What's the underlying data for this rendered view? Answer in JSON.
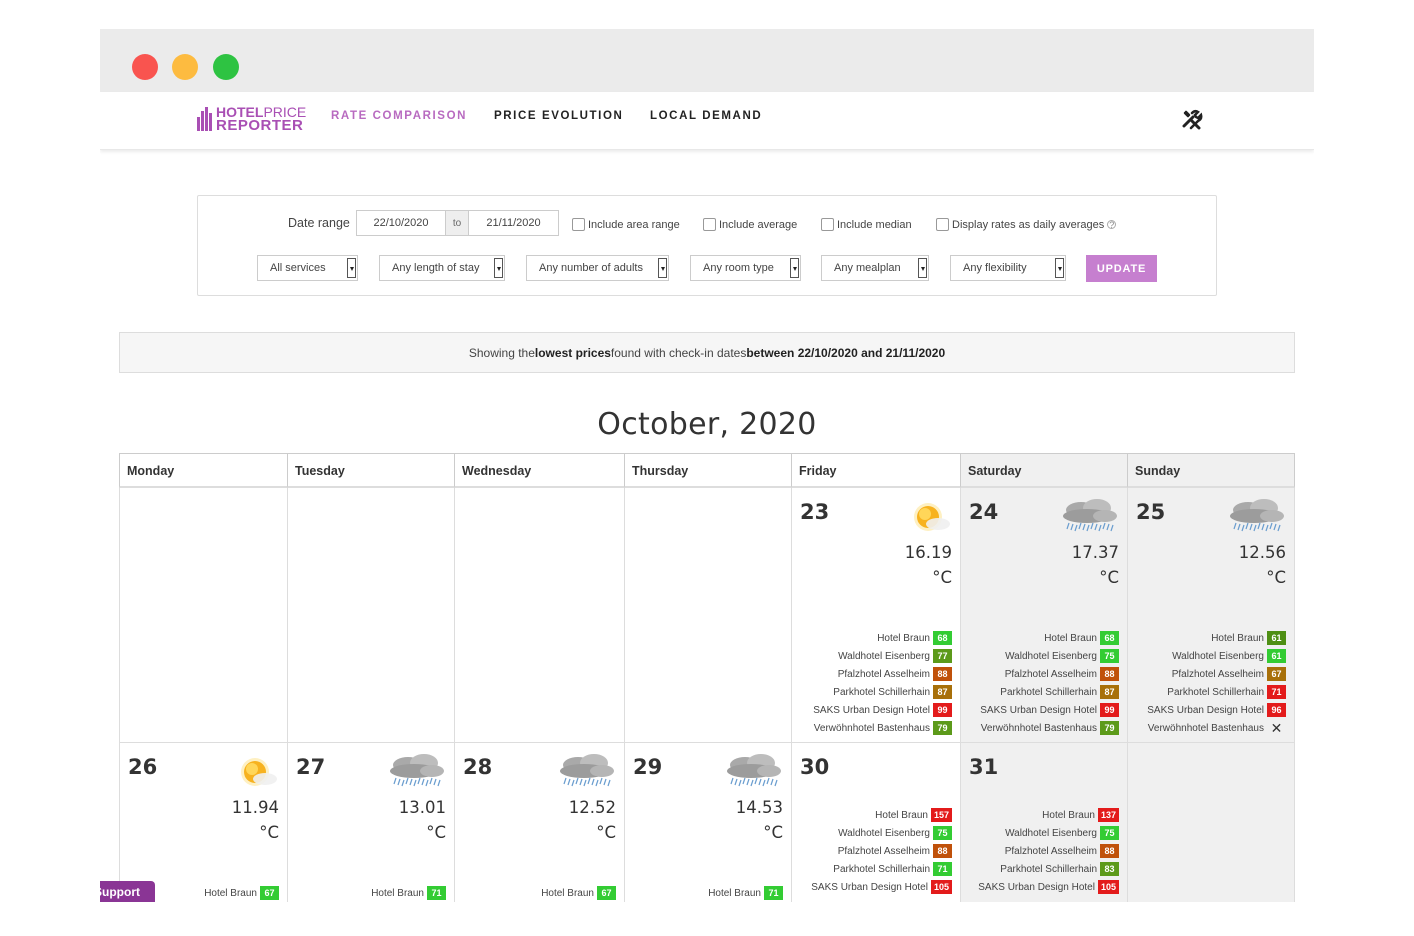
{
  "app": {
    "logo": {
      "line1_bold": "HOTEL",
      "line1_thin": "PRICE",
      "line2": "REPORTER"
    },
    "nav": [
      {
        "label": "RATE COMPARISON",
        "active": true
      },
      {
        "label": "PRICE EVOLUTION",
        "active": false
      },
      {
        "label": "LOCAL DEMAND",
        "active": false
      }
    ],
    "tools_icon": "tools-icon"
  },
  "filters": {
    "date_range_label": "Date range",
    "date_from": "22/10/2020",
    "to_label": "to",
    "date_to": "21/11/2020",
    "checkboxes": [
      {
        "label": "Include area range",
        "checked": false
      },
      {
        "label": "Include average",
        "checked": false
      },
      {
        "label": "Include median",
        "checked": false
      },
      {
        "label": "Display rates as daily averages",
        "checked": false
      }
    ],
    "selects": [
      {
        "value": "All services"
      },
      {
        "value": "Any length of stay"
      },
      {
        "value": "Any number of adults"
      },
      {
        "value": "Any room type"
      },
      {
        "value": "Any mealplan"
      },
      {
        "value": "Any flexibility"
      }
    ],
    "update_label": "UPDATE"
  },
  "notice": {
    "t1": "Showing the ",
    "b1": "lowest prices",
    "t2": " found with check-in dates ",
    "b2": "between 22/10/2020 and 21/11/2020"
  },
  "calendar": {
    "month_title": "October, 2020",
    "weekdays": [
      "Monday",
      "Tuesday",
      "Wednesday",
      "Thursday",
      "Friday",
      "Saturday",
      "Sunday"
    ],
    "unit": "°C",
    "colors": {
      "green": "#33cc33",
      "olive": "#5c9a1a",
      "orange": "#c0760a",
      "red": "#e31b1b",
      "darkgreen": "#4e8f14"
    },
    "week1": [
      null,
      null,
      null,
      null,
      {
        "day": "23",
        "weather": "sunny",
        "temp": "16.19",
        "hotels": [
          {
            "name": "Hotel Braun",
            "price": "68",
            "color": "#33cc33"
          },
          {
            "name": "Waldhotel Eisenberg",
            "price": "77",
            "color": "#5c9a1a"
          },
          {
            "name": "Pfalzhotel Asselheim",
            "price": "88",
            "color": "#c0510a"
          },
          {
            "name": "Parkhotel Schillerhain",
            "price": "87",
            "color": "#a8700a"
          },
          {
            "name": "SAKS Urban Design Hotel",
            "price": "99",
            "color": "#e31b1b"
          },
          {
            "name": "Verwöhnhotel Bastenhaus",
            "price": "79",
            "color": "#5c9a1a"
          }
        ]
      },
      {
        "day": "24",
        "weather": "rain",
        "temp": "17.37",
        "hotels": [
          {
            "name": "Hotel Braun",
            "price": "68",
            "color": "#33cc33"
          },
          {
            "name": "Waldhotel Eisenberg",
            "price": "75",
            "color": "#33cc33"
          },
          {
            "name": "Pfalzhotel Asselheim",
            "price": "88",
            "color": "#c0510a"
          },
          {
            "name": "Parkhotel Schillerhain",
            "price": "87",
            "color": "#a8700a"
          },
          {
            "name": "SAKS Urban Design Hotel",
            "price": "99",
            "color": "#e31b1b"
          },
          {
            "name": "Verwöhnhotel Bastenhaus",
            "price": "79",
            "color": "#5c9a1a"
          }
        ]
      },
      {
        "day": "25",
        "weather": "rain",
        "temp": "12.56",
        "hotels": [
          {
            "name": "Hotel Braun",
            "price": "61",
            "color": "#4e8f14"
          },
          {
            "name": "Waldhotel Eisenberg",
            "price": "61",
            "color": "#33cc33"
          },
          {
            "name": "Pfalzhotel Asselheim",
            "price": "67",
            "color": "#a8700a"
          },
          {
            "name": "Parkhotel Schillerhain",
            "price": "71",
            "color": "#e31b1b"
          },
          {
            "name": "SAKS Urban Design Hotel",
            "price": "96",
            "color": "#e31b1b"
          },
          {
            "name": "Verwöhnhotel Bastenhaus",
            "price": null,
            "color": null
          }
        ]
      }
    ],
    "week2": [
      {
        "day": "26",
        "weather": "sunny",
        "temp": "11.94",
        "hotels": [
          {
            "name": "Hotel Braun",
            "price": "67",
            "color": "#33cc33"
          }
        ]
      },
      {
        "day": "27",
        "weather": "rain",
        "temp": "13.01",
        "hotels": [
          {
            "name": "Hotel Braun",
            "price": "71",
            "color": "#33cc33"
          }
        ]
      },
      {
        "day": "28",
        "weather": "rain",
        "temp": "12.52",
        "hotels": [
          {
            "name": "Hotel Braun",
            "price": "67",
            "color": "#33cc33"
          }
        ]
      },
      {
        "day": "29",
        "weather": "rain",
        "temp": "14.53",
        "hotels": [
          {
            "name": "Hotel Braun",
            "price": "71",
            "color": "#33cc33"
          }
        ]
      },
      {
        "day": "30",
        "weather": null,
        "temp": null,
        "hotels": [
          {
            "name": "Hotel Braun",
            "price": "157",
            "color": "#e31b1b"
          },
          {
            "name": "Waldhotel Eisenberg",
            "price": "75",
            "color": "#33cc33"
          },
          {
            "name": "Pfalzhotel Asselheim",
            "price": "88",
            "color": "#c0510a"
          },
          {
            "name": "Parkhotel Schillerhain",
            "price": "71",
            "color": "#33cc33"
          },
          {
            "name": "SAKS Urban Design Hotel",
            "price": "105",
            "color": "#e31b1b"
          }
        ]
      },
      {
        "day": "31",
        "weather": null,
        "temp": null,
        "hotels": [
          {
            "name": "Hotel Braun",
            "price": "137",
            "color": "#e31b1b"
          },
          {
            "name": "Waldhotel Eisenberg",
            "price": "75",
            "color": "#33cc33"
          },
          {
            "name": "Pfalzhotel Asselheim",
            "price": "88",
            "color": "#c0510a"
          },
          {
            "name": "Parkhotel Schillerhain",
            "price": "83",
            "color": "#5c9a1a"
          },
          {
            "name": "SAKS Urban Design Hotel",
            "price": "105",
            "color": "#e31b1b"
          }
        ]
      },
      null
    ]
  },
  "support_label": "Support"
}
